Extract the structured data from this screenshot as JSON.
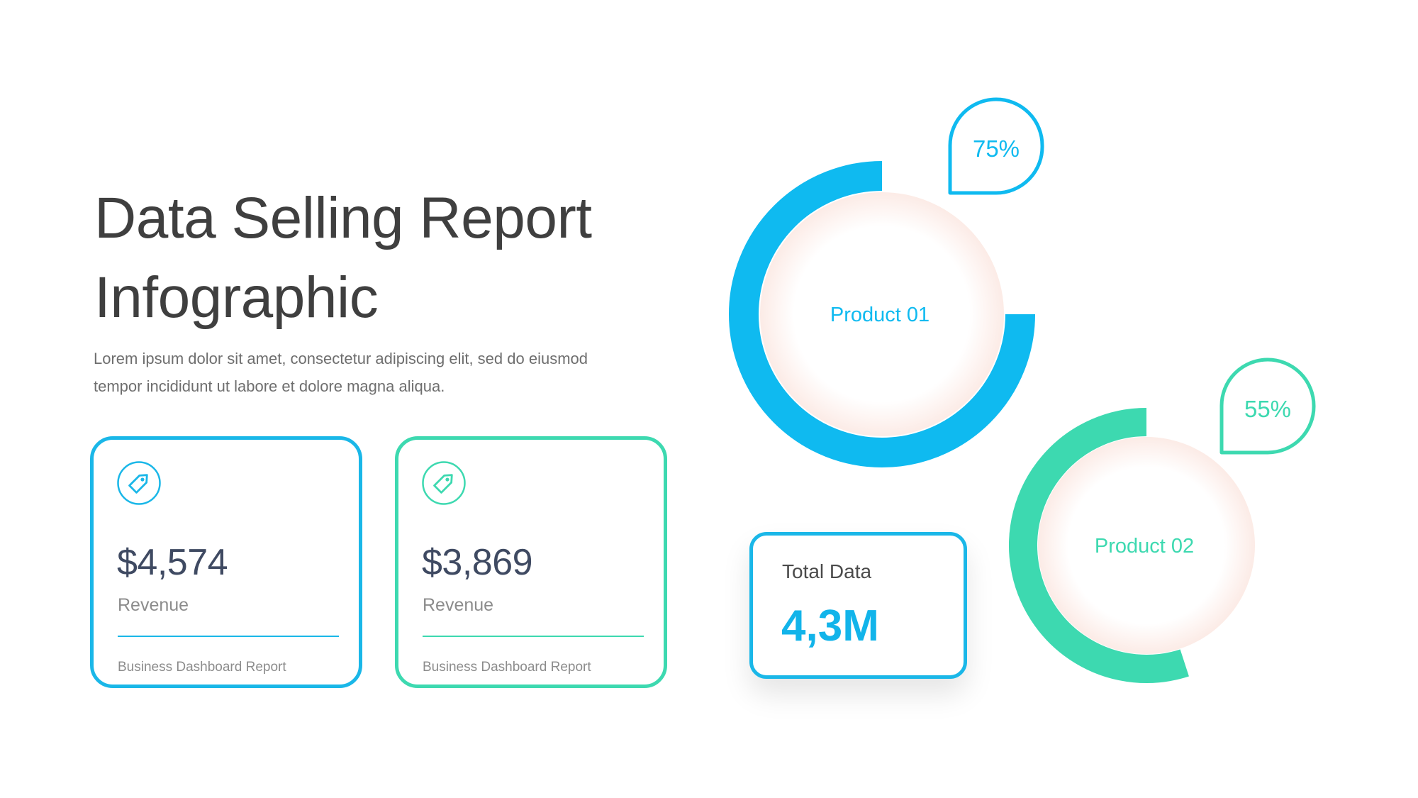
{
  "header": {
    "title_line1": "Data Selling Report",
    "title_line2": "Infographic",
    "description_line1": "Lorem ipsum dolor sit amet, consectetur adipiscing elit, sed do eiusmod",
    "description_line2": "tempor incididunt ut labore et dolore magna aliqua."
  },
  "cards": [
    {
      "icon": "tag-icon",
      "amount": "$4,574",
      "label": "Revenue",
      "footer": "Business Dashboard Report",
      "color": "#1ab7e8"
    },
    {
      "icon": "tag-icon",
      "amount": "$3,869",
      "label": "Revenue",
      "footer": "Business Dashboard Report",
      "color": "#3dd9b0"
    }
  ],
  "total": {
    "label": "Total Data",
    "value": "4,3M"
  },
  "chart_data": [
    {
      "type": "pie",
      "style": "donut",
      "label": "Product 01",
      "value": 75,
      "value_label": "75%",
      "max": 100,
      "color": "#0fbaf0",
      "track_color": "#cfeffc"
    },
    {
      "type": "pie",
      "style": "donut",
      "label": "Product 02",
      "value": 55,
      "value_label": "55%",
      "max": 100,
      "color": "#3dd9b0",
      "track_color": "#d7f7ee"
    }
  ]
}
